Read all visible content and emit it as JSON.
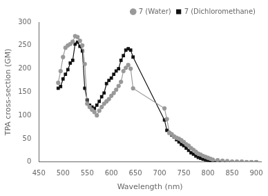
{
  "chart_data": {
    "type": "line",
    "x_label": "Wavelength (nm)",
    "y_label": "TPA cross-section (GM)",
    "x": [
      490,
      495,
      500,
      505,
      510,
      515,
      520,
      525,
      530,
      535,
      540,
      545,
      550,
      555,
      560,
      565,
      570,
      575,
      580,
      585,
      590,
      595,
      600,
      605,
      610,
      615,
      620,
      625,
      630,
      635,
      640,
      645,
      710,
      715,
      720,
      725,
      730,
      735,
      740,
      745,
      750,
      755,
      760,
      765,
      770,
      775,
      780,
      785,
      790,
      795,
      800,
      805,
      810,
      820,
      830,
      840,
      850,
      860,
      870,
      880,
      890,
      900
    ],
    "series": [
      {
        "name": "7 (Water)",
        "color": "#999999",
        "marker": "circle",
        "line_style": "solid",
        "values": [
          170,
          195,
          225,
          245,
          250,
          253,
          258,
          270,
          268,
          260,
          250,
          210,
          125,
          118,
          112,
          107,
          100,
          110,
          118,
          125,
          130,
          135,
          142,
          148,
          155,
          163,
          172,
          195,
          202,
          208,
          200,
          158,
          115,
          92,
          63,
          60,
          55,
          52,
          50,
          47,
          43,
          38,
          35,
          30,
          26,
          22,
          18,
          16,
          13,
          11,
          9,
          7,
          5,
          4,
          3,
          2,
          1,
          1,
          1,
          0,
          0,
          0
        ]
      },
      {
        "name": "7 (Dichloromethane)",
        "color": "#111111",
        "marker": "square",
        "line_style": "solid",
        "values": [
          158,
          162,
          178,
          188,
          198,
          212,
          218,
          253,
          257,
          248,
          238,
          158,
          133,
          122,
          118,
          115,
          122,
          130,
          140,
          148,
          168,
          175,
          180,
          188,
          195,
          200,
          218,
          228,
          240,
          243,
          240,
          225,
          90,
          68,
          62,
          58,
          54,
          48,
          43,
          38,
          35,
          30,
          25,
          20,
          17,
          13,
          10,
          8,
          6,
          5,
          4,
          3,
          2,
          1,
          1,
          0,
          0,
          0,
          0,
          0,
          0,
          0
        ]
      }
    ],
    "xlim": [
      450,
      910
    ],
    "ylim": [
      0,
      300
    ],
    "xticks": [
      450,
      500,
      550,
      600,
      650,
      700,
      750,
      800,
      850,
      900
    ],
    "yticks": [
      0,
      50,
      100,
      150,
      200,
      250,
      300
    ],
    "grid": false,
    "legend": "upper right"
  }
}
